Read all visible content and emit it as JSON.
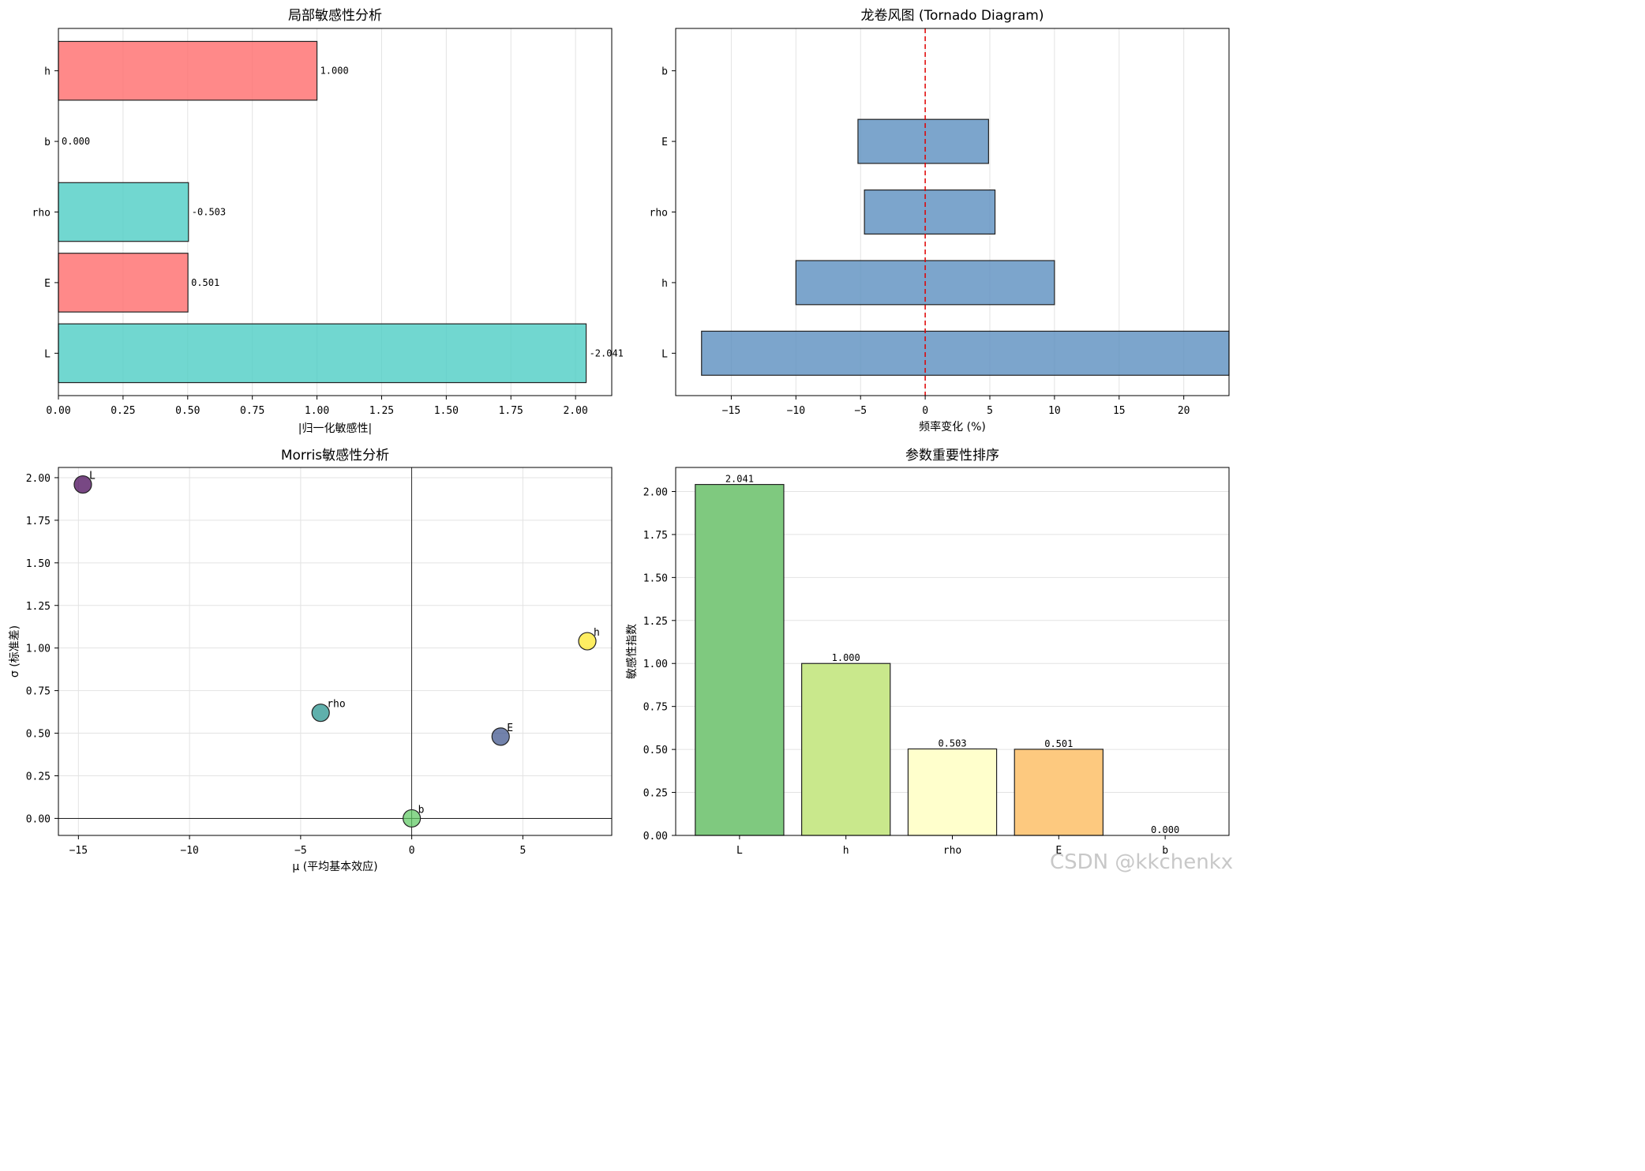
{
  "watermark": "CSDN @kkchenkx",
  "chart_data": [
    {
      "type": "bar",
      "orientation": "horizontal",
      "title": "局部敏感性分析",
      "xlabel": "|归一化敏感性|",
      "ylabel": "",
      "categories": [
        "L",
        "E",
        "rho",
        "b",
        "h"
      ],
      "values": [
        2.041,
        0.501,
        0.503,
        0.0,
        1.0
      ],
      "labels": [
        "-2.041",
        "0.501",
        "-0.503",
        "0.000",
        "1.000"
      ],
      "colors": [
        "#4ecdc4",
        "#ff6b6b",
        "#4ecdc4",
        "#ff6b6b",
        "#ff6b6b"
      ],
      "xlim": [
        0,
        2.14
      ],
      "xticks": [
        0,
        0.25,
        0.5,
        0.75,
        1.0,
        1.25,
        1.5,
        1.75,
        2.0
      ],
      "xtick_labels": [
        "0.00",
        "0.25",
        "0.50",
        "0.75",
        "1.00",
        "1.25",
        "1.50",
        "1.75",
        "2.00"
      ],
      "grid": true
    },
    {
      "type": "bar",
      "orientation": "horizontal",
      "subtype": "tornado",
      "title": "龙卷风图 (Tornado Diagram)",
      "xlabel": "频率变化 (%)",
      "ylabel": "",
      "categories": [
        "L",
        "h",
        "rho",
        "E",
        "b"
      ],
      "low": [
        -17.3,
        -10.0,
        -4.7,
        -5.2,
        0.0
      ],
      "high": [
        23.5,
        10.0,
        5.4,
        4.9,
        0.0
      ],
      "xlim": [
        -19.3,
        23.5
      ],
      "xticks": [
        -15,
        -10,
        -5,
        0,
        5,
        10,
        15,
        20
      ],
      "xtick_labels": [
        "−15",
        "−10",
        "−5",
        "0",
        "5",
        "10",
        "15",
        "20"
      ],
      "reference_line": 0,
      "bar_color": "#5b8fbf",
      "grid": true
    },
    {
      "type": "scatter",
      "title": "Morris敏感性分析",
      "xlabel": "μ (平均基本效应)",
      "ylabel": "σ (标准差)",
      "points": [
        {
          "label": "L",
          "mu": -14.8,
          "sigma": 1.96,
          "color": "#440154"
        },
        {
          "label": "h",
          "mu": 7.9,
          "sigma": 1.04,
          "color": "#fde725"
        },
        {
          "label": "rho",
          "mu": -4.1,
          "sigma": 0.62,
          "color": "#21918c"
        },
        {
          "label": "E",
          "mu": 4.0,
          "sigma": 0.48,
          "color": "#3b528b"
        },
        {
          "label": "b",
          "mu": 0.0,
          "sigma": 0.0,
          "color": "#5ec962"
        }
      ],
      "xlim": [
        -15.9,
        9.0
      ],
      "ylim": [
        -0.1,
        2.06
      ],
      "xticks": [
        -15,
        -10,
        -5,
        0,
        5
      ],
      "xtick_labels": [
        "−15",
        "−10",
        "−5",
        "0",
        "5"
      ],
      "yticks": [
        0,
        0.25,
        0.5,
        0.75,
        1.0,
        1.25,
        1.5,
        1.75,
        2.0
      ],
      "ytick_labels": [
        "0.00",
        "0.25",
        "0.50",
        "0.75",
        "1.00",
        "1.25",
        "1.50",
        "1.75",
        "2.00"
      ],
      "reference_lines": {
        "x": 0,
        "y": 0
      },
      "grid": true
    },
    {
      "type": "bar",
      "title": "参数重要性排序",
      "xlabel": "",
      "ylabel": "敏感性指数",
      "categories": [
        "L",
        "h",
        "rho",
        "E",
        "b"
      ],
      "values": [
        2.041,
        1.0,
        0.503,
        0.501,
        0.0
      ],
      "labels": [
        "2.041",
        "1.000",
        "0.503",
        "0.501",
        "0.000"
      ],
      "colors": [
        "#7fc97f",
        "#c9e88c",
        "#ffffcc",
        "#fdc97f",
        "#f0f0f0"
      ],
      "ylim": [
        0,
        2.14
      ],
      "yticks": [
        0,
        0.25,
        0.5,
        0.75,
        1.0,
        1.25,
        1.5,
        1.75,
        2.0
      ],
      "ytick_labels": [
        "0.00",
        "0.25",
        "0.50",
        "0.75",
        "1.00",
        "1.25",
        "1.50",
        "1.75",
        "2.00"
      ],
      "grid": true
    }
  ]
}
